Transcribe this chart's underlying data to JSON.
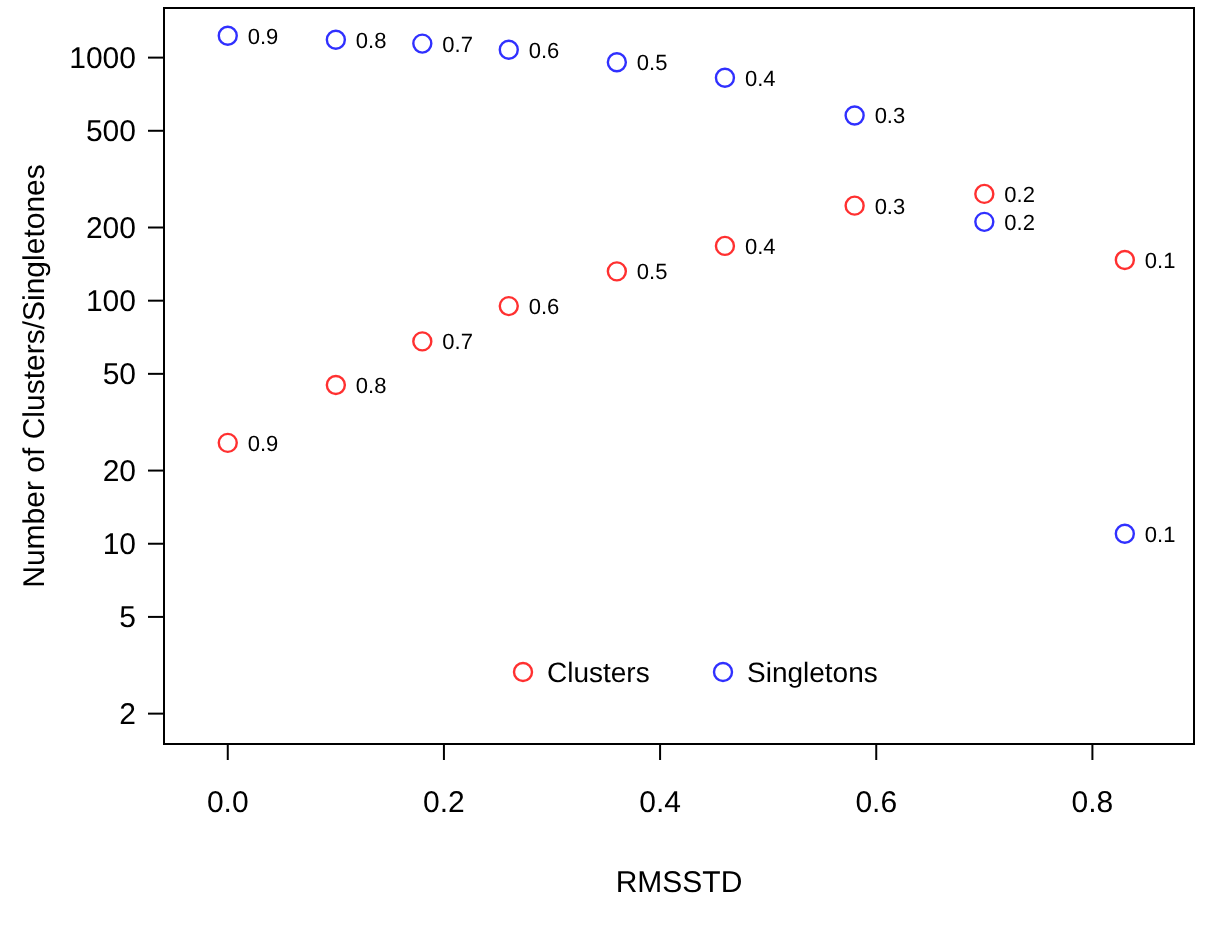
{
  "chart_data": {
    "type": "scatter",
    "xlabel": "RMSSTD",
    "ylabel": "Number of Clusters/Singletones",
    "log": "y",
    "marker": "circle",
    "legend": "bottom",
    "grid": false,
    "x": [
      0,
      0.1,
      0.18,
      0.26,
      0.36,
      0.46,
      0.58,
      0.7,
      0.83
    ],
    "xlim": [
      -0.059,
      0.894
    ],
    "xticks": [
      {
        "value": 0,
        "label": "0.0"
      },
      0.2,
      0.4,
      0.6,
      0.8
    ],
    "ylim": [
      1.5,
      1600
    ],
    "yticks": [
      2,
      5,
      10,
      20,
      50,
      100,
      200,
      500,
      1000
    ],
    "series": [
      {
        "name": "Clusters",
        "color": "#ff3030",
        "values": [
          26,
          45,
          68,
          95,
          132,
          168,
          246,
          275,
          147
        ]
      },
      {
        "name": "Singletons",
        "color": "#3030ff",
        "values": [
          1230,
          1185,
          1142,
          1078,
          957,
          826,
          578,
          211,
          11
        ]
      }
    ],
    "annotations": [
      {
        "text": "0.9",
        "x": 0,
        "y": 26
      },
      {
        "text": "0.8",
        "x": 0.1,
        "y": 45
      },
      {
        "text": "0.7",
        "x": 0.18,
        "y": 68
      },
      {
        "text": "0.6",
        "x": 0.26,
        "y": 95
      },
      {
        "text": "0.5",
        "x": 0.36,
        "y": 132
      },
      {
        "text": "0.4",
        "x": 0.46,
        "y": 168
      },
      {
        "text": "0.3",
        "x": 0.58,
        "y": 246
      },
      {
        "text": "0.2",
        "x": 0.7,
        "y": 275
      },
      {
        "text": "0.1",
        "x": 0.83,
        "y": 147
      },
      {
        "text": "0.9",
        "x": 0,
        "y": 1230
      },
      {
        "text": "0.8",
        "x": 0.1,
        "y": 1185
      },
      {
        "text": "0.7",
        "x": 0.18,
        "y": 1142
      },
      {
        "text": "0.6",
        "x": 0.26,
        "y": 1078
      },
      {
        "text": "0.5",
        "x": 0.36,
        "y": 957
      },
      {
        "text": "0.4",
        "x": 0.46,
        "y": 826
      },
      {
        "text": "0.3",
        "x": 0.58,
        "y": 578
      },
      {
        "text": "0.2",
        "x": 0.7,
        "y": 211
      },
      {
        "text": "0.1",
        "x": 0.83,
        "y": 11
      }
    ]
  }
}
